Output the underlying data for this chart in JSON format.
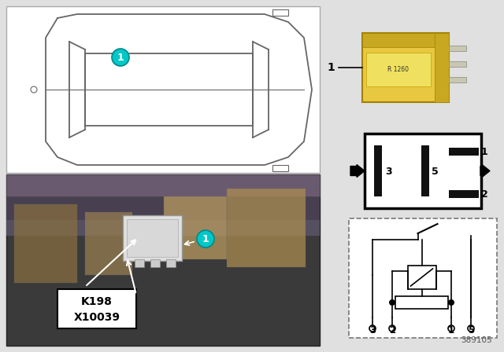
{
  "bg_color": "#e0e0e0",
  "part_number": "389105",
  "cyan_color": "#00C8C8",
  "cyan_edge": "#008888",
  "relay_yellow": "#E8C840",
  "relay_yellow_dark": "#C8A820",
  "pin_bar_color": "#111111",
  "car_line_color": "#666666",
  "photo_bg": "#3a3a3a",
  "label_K198": "K198",
  "label_X10039": "X10039"
}
